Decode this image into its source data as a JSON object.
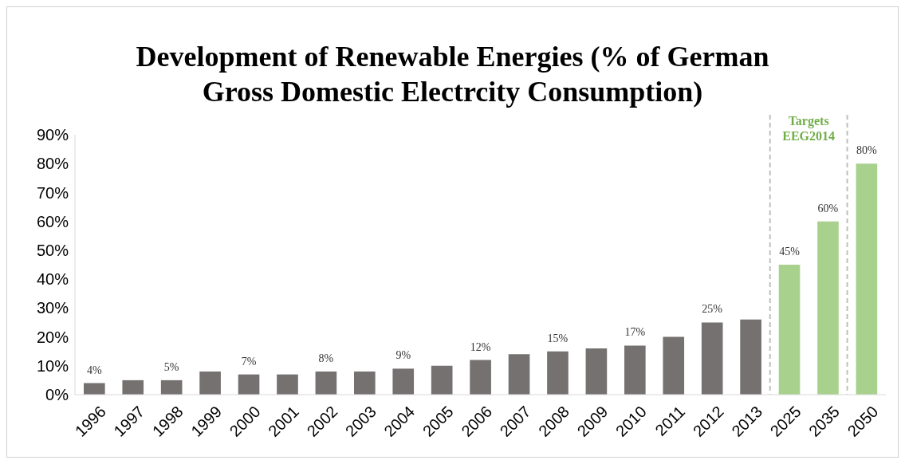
{
  "chart_data": {
    "type": "bar",
    "title": "Development of Renewable Energies (% of German Gross Domestic Electrcity Consumption)",
    "categories": [
      "1996",
      "1997",
      "1998",
      "1999",
      "2000",
      "2001",
      "2002",
      "2003",
      "2004",
      "2005",
      "2006",
      "2007",
      "2008",
      "2009",
      "2010",
      "2011",
      "2012",
      "2013",
      "2025",
      "2035",
      "2050"
    ],
    "values": [
      4,
      5,
      5,
      8,
      7,
      7,
      8,
      8,
      9,
      10,
      12,
      14,
      15,
      16,
      17,
      20,
      25,
      26,
      45,
      60,
      80
    ],
    "colors": [
      "#767171",
      "#767171",
      "#767171",
      "#767171",
      "#767171",
      "#767171",
      "#767171",
      "#767171",
      "#767171",
      "#767171",
      "#767171",
      "#767171",
      "#767171",
      "#767171",
      "#767171",
      "#767171",
      "#767171",
      "#767171",
      "#a9d18e",
      "#a9d18e",
      "#a9d18e"
    ],
    "value_labels": [
      "4%",
      null,
      "5%",
      null,
      "7%",
      null,
      "8%",
      null,
      "9%",
      null,
      "12%",
      null,
      "15%",
      null,
      "17%",
      null,
      "25%",
      null,
      "45%",
      "60%",
      "80%"
    ],
    "ylim": [
      0,
      90
    ],
    "yticks": [
      {
        "value": 0,
        "label": "0%"
      },
      {
        "value": 10,
        "label": "10%"
      },
      {
        "value": 20,
        "label": "20%"
      },
      {
        "value": 30,
        "label": "30%"
      },
      {
        "value": 40,
        "label": "40%"
      },
      {
        "value": 50,
        "label": "50%"
      },
      {
        "value": 60,
        "label": "60%"
      },
      {
        "value": 70,
        "label": "70%"
      },
      {
        "value": 80,
        "label": "80%"
      },
      {
        "value": 90,
        "label": "90%"
      }
    ],
    "annotations": [
      "Targets EEG2014"
    ],
    "grid": false,
    "legend": false
  }
}
